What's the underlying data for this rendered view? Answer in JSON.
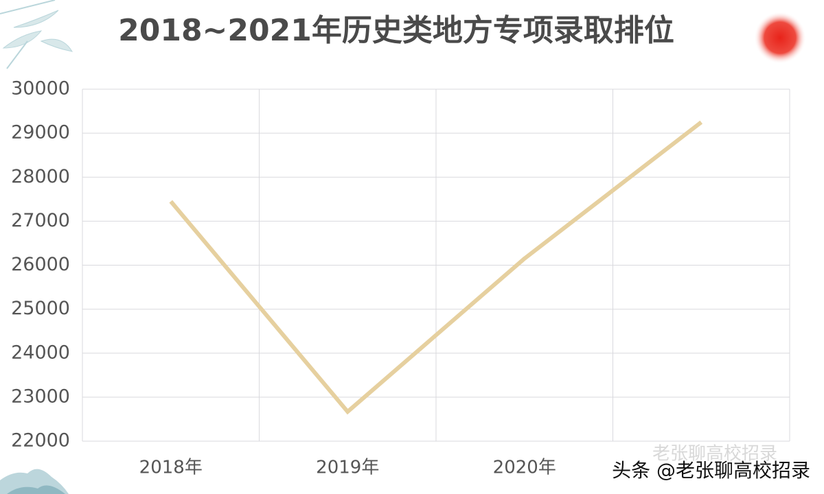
{
  "chart_data": {
    "type": "line",
    "title": "2018~2021年历史类地方专项录取排位",
    "categories": [
      "2018年",
      "2019年",
      "2020年",
      null
    ],
    "values": [
      27450,
      22670,
      26150,
      29250
    ],
    "color": "#e6d09f",
    "ylim": [
      22000,
      30000
    ],
    "yticks": [
      22000,
      23000,
      24000,
      25000,
      26000,
      27000,
      28000,
      29000,
      30000
    ],
    "grid": true
  },
  "watermark": {
    "faint": "老张聊高校招录",
    "main": "头条 @老张聊高校招录"
  }
}
